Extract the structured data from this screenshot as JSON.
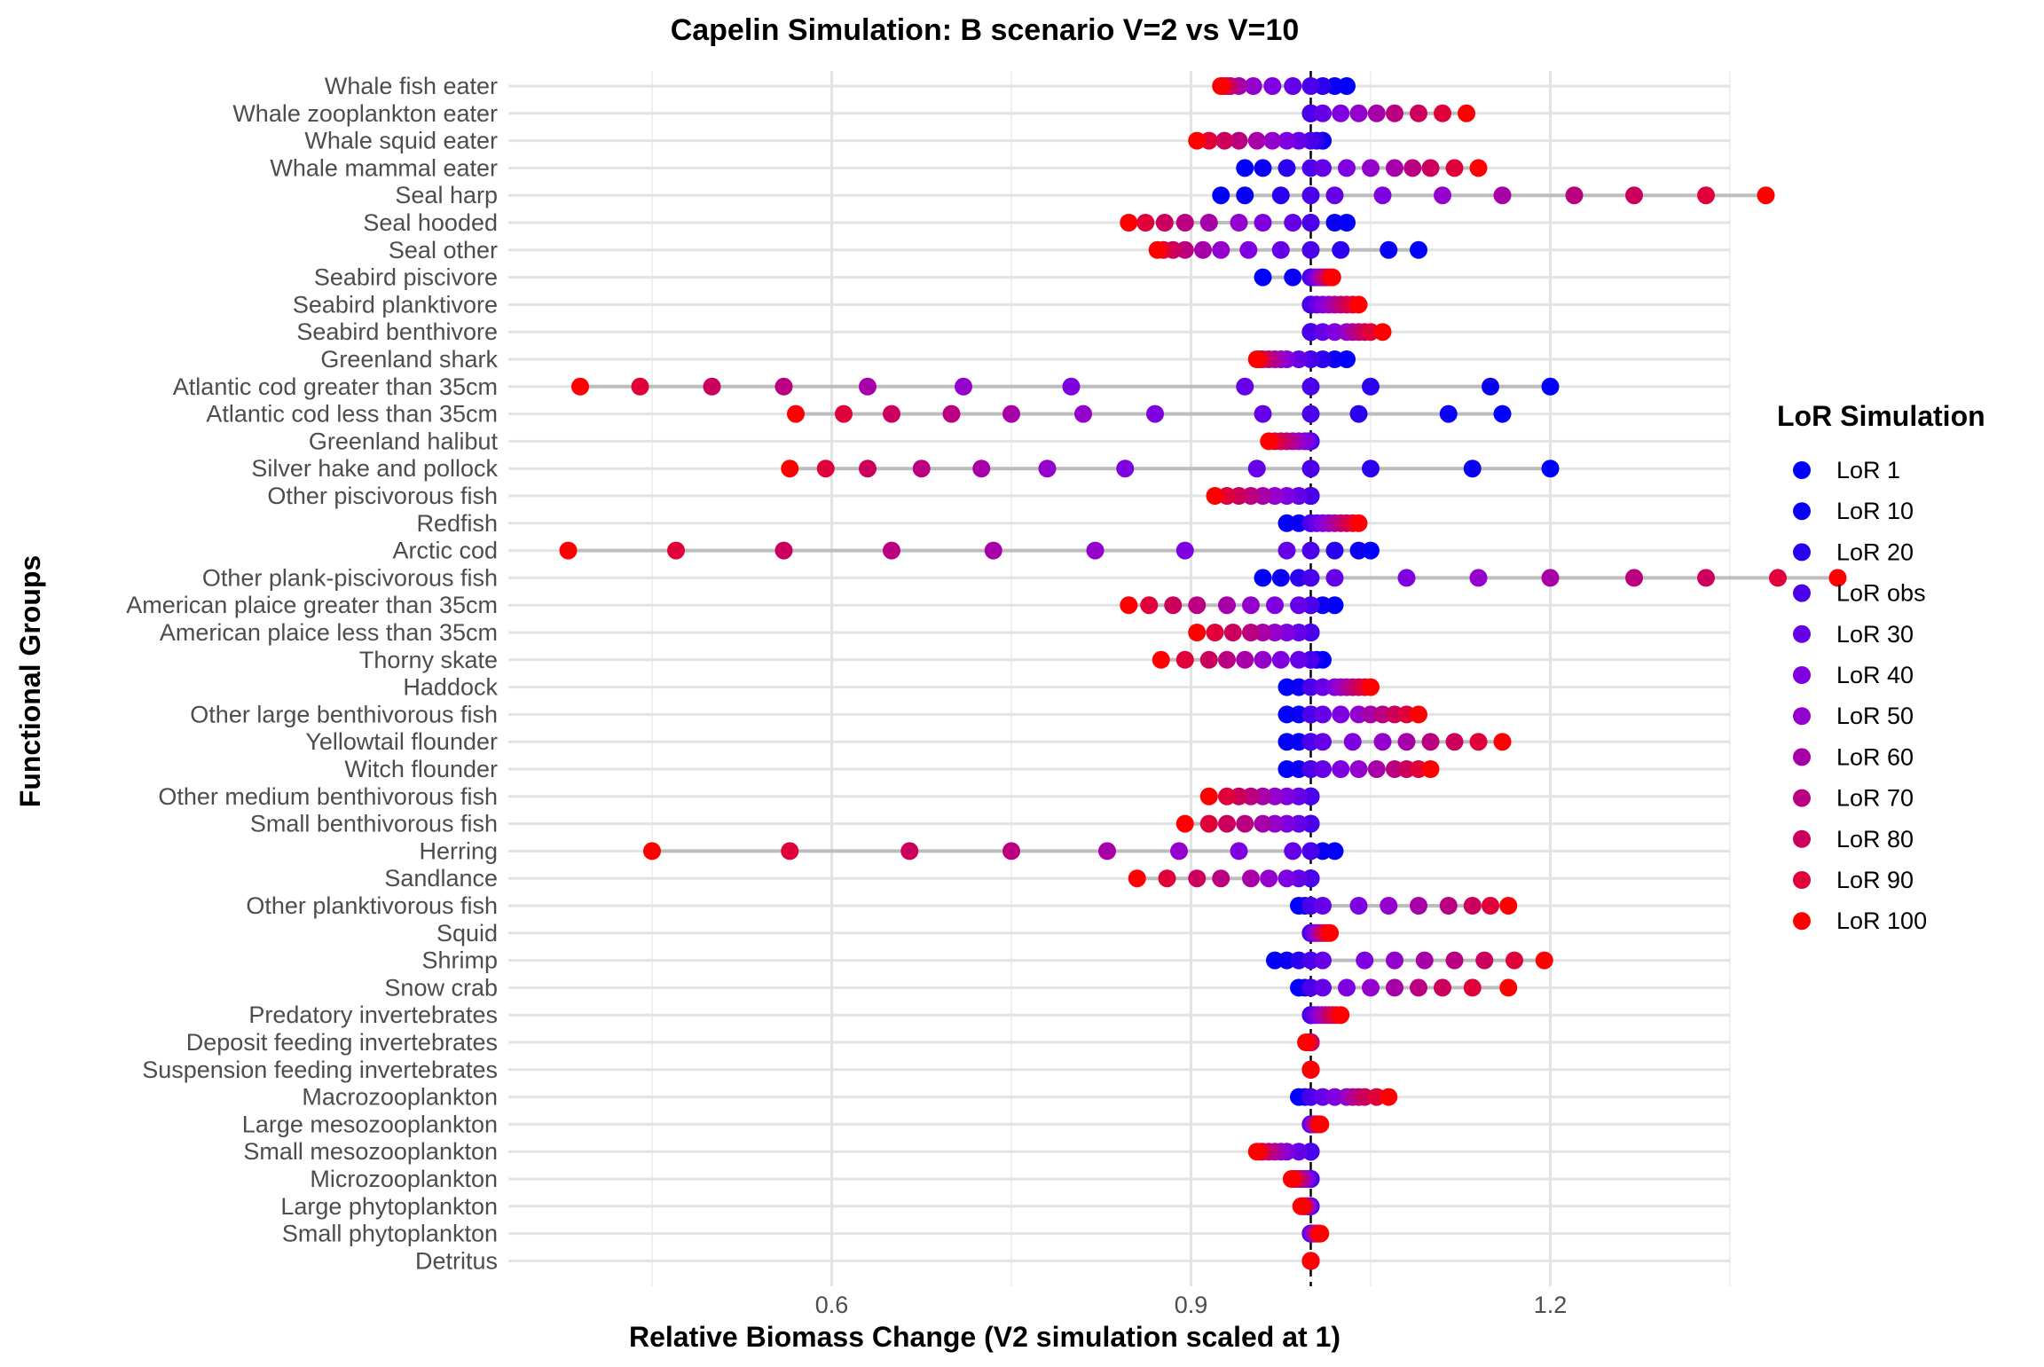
{
  "chart_data": {
    "type": "scatter",
    "title": "Capelin Simulation: B scenario V=2 vs V=10",
    "xlabel": "Relative Biomass Change (V2 simulation scaled at 1)",
    "ylabel": "Functional Groups",
    "xlim": [
      0.33,
      1.35
    ],
    "xticks": [
      0.6,
      0.9,
      1.2
    ],
    "xtick_labels": [
      "0.6",
      "0.9",
      "1.2"
    ],
    "reference_line_x": 1.0,
    "grid": true,
    "legend": {
      "title": "LoR Simulation",
      "position": "right",
      "entries": [
        {
          "label": "LoR 1",
          "color": "#0000FF"
        },
        {
          "label": "LoR 10",
          "color": "#0A00F5"
        },
        {
          "label": "LoR 20",
          "color": "#2A00EE"
        },
        {
          "label": "LoR obs",
          "color": "#4A00EA"
        },
        {
          "label": "LoR 30",
          "color": "#6500E8"
        },
        {
          "label": "LoR 40",
          "color": "#7F00E0"
        },
        {
          "label": "LoR 50",
          "color": "#9400CC"
        },
        {
          "label": "LoR 60",
          "color": "#A800A8"
        },
        {
          "label": "LoR 70",
          "color": "#BA0080"
        },
        {
          "label": "LoR 80",
          "color": "#CC005C"
        },
        {
          "label": "LoR 90",
          "color": "#E0003A"
        },
        {
          "label": "LoR 100",
          "color": "#FF0000"
        }
      ]
    },
    "categories": [
      "Whale fish eater",
      "Whale zooplankton eater",
      "Whale squid eater",
      "Whale mammal eater",
      "Seal harp",
      "Seal hooded",
      "Seal other",
      "Seabird piscivore",
      "Seabird planktivore",
      "Seabird benthivore",
      "Greenland shark",
      "Atlantic cod greater than 35cm",
      "Atlantic cod less than 35cm",
      "Greenland halibut",
      "Silver hake and pollock",
      "Other piscivorous fish",
      "Redfish",
      "Arctic cod",
      "Other plank-piscivorous fish",
      "American plaice greater than 35cm",
      "American plaice less than 35cm",
      "Thorny skate",
      "Haddock",
      "Other large benthivorous fish",
      "Yellowtail flounder",
      "Witch flounder",
      "Other medium benthivorous fish",
      "Small benthivorous fish",
      "Herring",
      "Sandlance",
      "Other planktivorous fish",
      "Squid",
      "Shrimp",
      "Snow crab",
      "Predatory invertebrates",
      "Deposit feeding invertebrates",
      "Suspension feeding invertebrates",
      "Macrozooplankton",
      "Large mesozooplankton",
      "Small mesozooplankton",
      "Microzooplankton",
      "Large phytoplankton",
      "Small phytoplankton",
      "Detritus"
    ],
    "series_order": [
      "LoR 1",
      "LoR 10",
      "LoR 20",
      "LoR obs",
      "LoR 30",
      "LoR 40",
      "LoR 50",
      "LoR 60",
      "LoR 70",
      "LoR 80",
      "LoR 90",
      "LoR 100"
    ],
    "values": [
      [
        1.03,
        1.02,
        1.01,
        1.0,
        0.985,
        0.968,
        0.952,
        0.94,
        0.933,
        0.93,
        0.927,
        0.925
      ],
      [
        1.0,
        1.0,
        1.0,
        1.0,
        1.01,
        1.025,
        1.04,
        1.055,
        1.07,
        1.09,
        1.11,
        1.13
      ],
      [
        1.01,
        1.01,
        1.005,
        1.0,
        0.99,
        0.98,
        0.968,
        0.955,
        0.94,
        0.928,
        0.915,
        0.905
      ],
      [
        0.945,
        0.96,
        0.98,
        1.0,
        1.01,
        1.03,
        1.05,
        1.07,
        1.085,
        1.1,
        1.12,
        1.14
      ],
      [
        0.925,
        0.945,
        0.975,
        1.0,
        1.02,
        1.06,
        1.11,
        1.16,
        1.22,
        1.27,
        1.33,
        1.38
      ],
      [
        1.03,
        1.02,
        1.0,
        1.0,
        0.985,
        0.96,
        0.94,
        0.915,
        0.895,
        0.878,
        0.862,
        0.848
      ],
      [
        1.09,
        1.065,
        1.025,
        1.0,
        0.975,
        0.948,
        0.925,
        0.91,
        0.895,
        0.885,
        0.877,
        0.872
      ],
      [
        0.96,
        0.985,
        1.0,
        1.0,
        1.003,
        1.006,
        1.008,
        1.01,
        1.012,
        1.014,
        1.016,
        1.018
      ],
      [
        1.0,
        1.0,
        1.0,
        1.0,
        1.005,
        1.01,
        1.015,
        1.02,
        1.025,
        1.03,
        1.035,
        1.04
      ],
      [
        1.0,
        1.0,
        1.0,
        1.0,
        1.01,
        1.02,
        1.03,
        1.035,
        1.04,
        1.045,
        1.05,
        1.06
      ],
      [
        1.03,
        1.02,
        1.01,
        1.0,
        0.99,
        0.98,
        0.975,
        0.97,
        0.965,
        0.96,
        0.958,
        0.955
      ],
      [
        1.2,
        1.15,
        1.05,
        1.0,
        0.945,
        0.8,
        0.71,
        0.63,
        0.56,
        0.5,
        0.44,
        0.39
      ],
      [
        1.16,
        1.115,
        1.04,
        1.0,
        0.96,
        0.87,
        0.81,
        0.75,
        0.7,
        0.65,
        0.61,
        0.57
      ],
      [
        1.0,
        1.0,
        1.0,
        1.0,
        0.998,
        0.995,
        0.99,
        0.985,
        0.98,
        0.975,
        0.97,
        0.965
      ],
      [
        1.2,
        1.135,
        1.05,
        1.0,
        0.955,
        0.845,
        0.78,
        0.725,
        0.675,
        0.63,
        0.595,
        0.565
      ],
      [
        1.0,
        1.0,
        1.0,
        1.0,
        0.99,
        0.98,
        0.97,
        0.96,
        0.95,
        0.94,
        0.93,
        0.92
      ],
      [
        0.98,
        0.99,
        1.0,
        1.0,
        1.005,
        1.01,
        1.015,
        1.02,
        1.025,
        1.03,
        1.035,
        1.04
      ],
      [
        1.05,
        1.04,
        1.02,
        1.0,
        0.98,
        0.895,
        0.82,
        0.735,
        0.65,
        0.56,
        0.47,
        0.38
      ],
      [
        0.96,
        0.975,
        0.99,
        1.0,
        1.02,
        1.08,
        1.14,
        1.2,
        1.27,
        1.33,
        1.39,
        1.44
      ],
      [
        1.02,
        1.01,
        1.0,
        1.0,
        0.99,
        0.97,
        0.95,
        0.93,
        0.905,
        0.885,
        0.865,
        0.848
      ],
      [
        1.0,
        1.0,
        1.0,
        1.0,
        0.99,
        0.98,
        0.97,
        0.96,
        0.95,
        0.935,
        0.92,
        0.905
      ],
      [
        1.01,
        1.005,
        1.0,
        1.0,
        0.99,
        0.975,
        0.96,
        0.945,
        0.93,
        0.915,
        0.895,
        0.875
      ],
      [
        0.98,
        0.99,
        1.0,
        1.0,
        1.01,
        1.02,
        1.025,
        1.03,
        1.035,
        1.04,
        1.045,
        1.05
      ],
      [
        0.98,
        0.99,
        1.0,
        1.0,
        1.01,
        1.025,
        1.04,
        1.05,
        1.06,
        1.07,
        1.08,
        1.09
      ],
      [
        0.98,
        0.99,
        1.0,
        1.0,
        1.01,
        1.035,
        1.06,
        1.08,
        1.1,
        1.12,
        1.14,
        1.16
      ],
      [
        0.98,
        0.99,
        1.0,
        1.0,
        1.01,
        1.025,
        1.04,
        1.055,
        1.07,
        1.08,
        1.09,
        1.1
      ],
      [
        1.0,
        1.0,
        1.0,
        1.0,
        0.99,
        0.98,
        0.97,
        0.96,
        0.95,
        0.94,
        0.93,
        0.915
      ],
      [
        1.0,
        1.0,
        1.0,
        1.0,
        0.99,
        0.98,
        0.97,
        0.96,
        0.945,
        0.93,
        0.915,
        0.895
      ],
      [
        1.02,
        1.01,
        1.0,
        1.0,
        0.985,
        0.94,
        0.89,
        0.83,
        0.75,
        0.665,
        0.565,
        0.45
      ],
      [
        1.0,
        1.0,
        1.0,
        1.0,
        0.99,
        0.98,
        0.965,
        0.95,
        0.925,
        0.905,
        0.88,
        0.855
      ],
      [
        0.99,
        0.995,
        1.0,
        1.0,
        1.01,
        1.04,
        1.065,
        1.09,
        1.115,
        1.135,
        1.15,
        1.165
      ],
      [
        1.0,
        1.0,
        1.0,
        1.0,
        1.002,
        1.004,
        1.006,
        1.008,
        1.01,
        1.012,
        1.014,
        1.016
      ],
      [
        0.97,
        0.98,
        0.99,
        1.0,
        1.01,
        1.045,
        1.07,
        1.095,
        1.12,
        1.145,
        1.17,
        1.195
      ],
      [
        0.99,
        0.995,
        1.0,
        1.0,
        1.01,
        1.03,
        1.05,
        1.07,
        1.09,
        1.11,
        1.135,
        1.165
      ],
      [
        1.0,
        1.0,
        1.0,
        1.0,
        1.003,
        1.006,
        1.009,
        1.012,
        1.015,
        1.018,
        1.021,
        1.025
      ],
      [
        1.0,
        1.0,
        1.0,
        1.0,
        1.0,
        1.0,
        1.0,
        1.0,
        1.0,
        1.0,
        0.998,
        0.996
      ],
      [
        1.0,
        1.0,
        1.0,
        1.0,
        1.0,
        1.0,
        1.0,
        1.0,
        1.0,
        1.0,
        1.0,
        1.0
      ],
      [
        0.99,
        0.995,
        1.0,
        1.0,
        1.01,
        1.02,
        1.03,
        1.035,
        1.04,
        1.045,
        1.055,
        1.065
      ],
      [
        1.0,
        1.0,
        1.0,
        1.0,
        1.001,
        1.002,
        1.003,
        1.004,
        1.005,
        1.006,
        1.007,
        1.008
      ],
      [
        1.0,
        1.0,
        1.0,
        1.0,
        0.99,
        0.98,
        0.975,
        0.97,
        0.965,
        0.96,
        0.958,
        0.955
      ],
      [
        1.0,
        1.0,
        1.0,
        1.0,
        0.998,
        0.996,
        0.994,
        0.992,
        0.99,
        0.988,
        0.986,
        0.984
      ],
      [
        1.0,
        1.0,
        1.0,
        1.0,
        0.999,
        0.998,
        0.997,
        0.996,
        0.995,
        0.994,
        0.993,
        0.992
      ],
      [
        1.0,
        1.0,
        1.0,
        1.0,
        1.001,
        1.002,
        1.003,
        1.004,
        1.005,
        1.006,
        1.007,
        1.008
      ],
      [
        1.0,
        1.0,
        1.0,
        1.0,
        1.0,
        1.0,
        1.0,
        1.0,
        1.0,
        1.0,
        1.0,
        1.0
      ]
    ]
  }
}
